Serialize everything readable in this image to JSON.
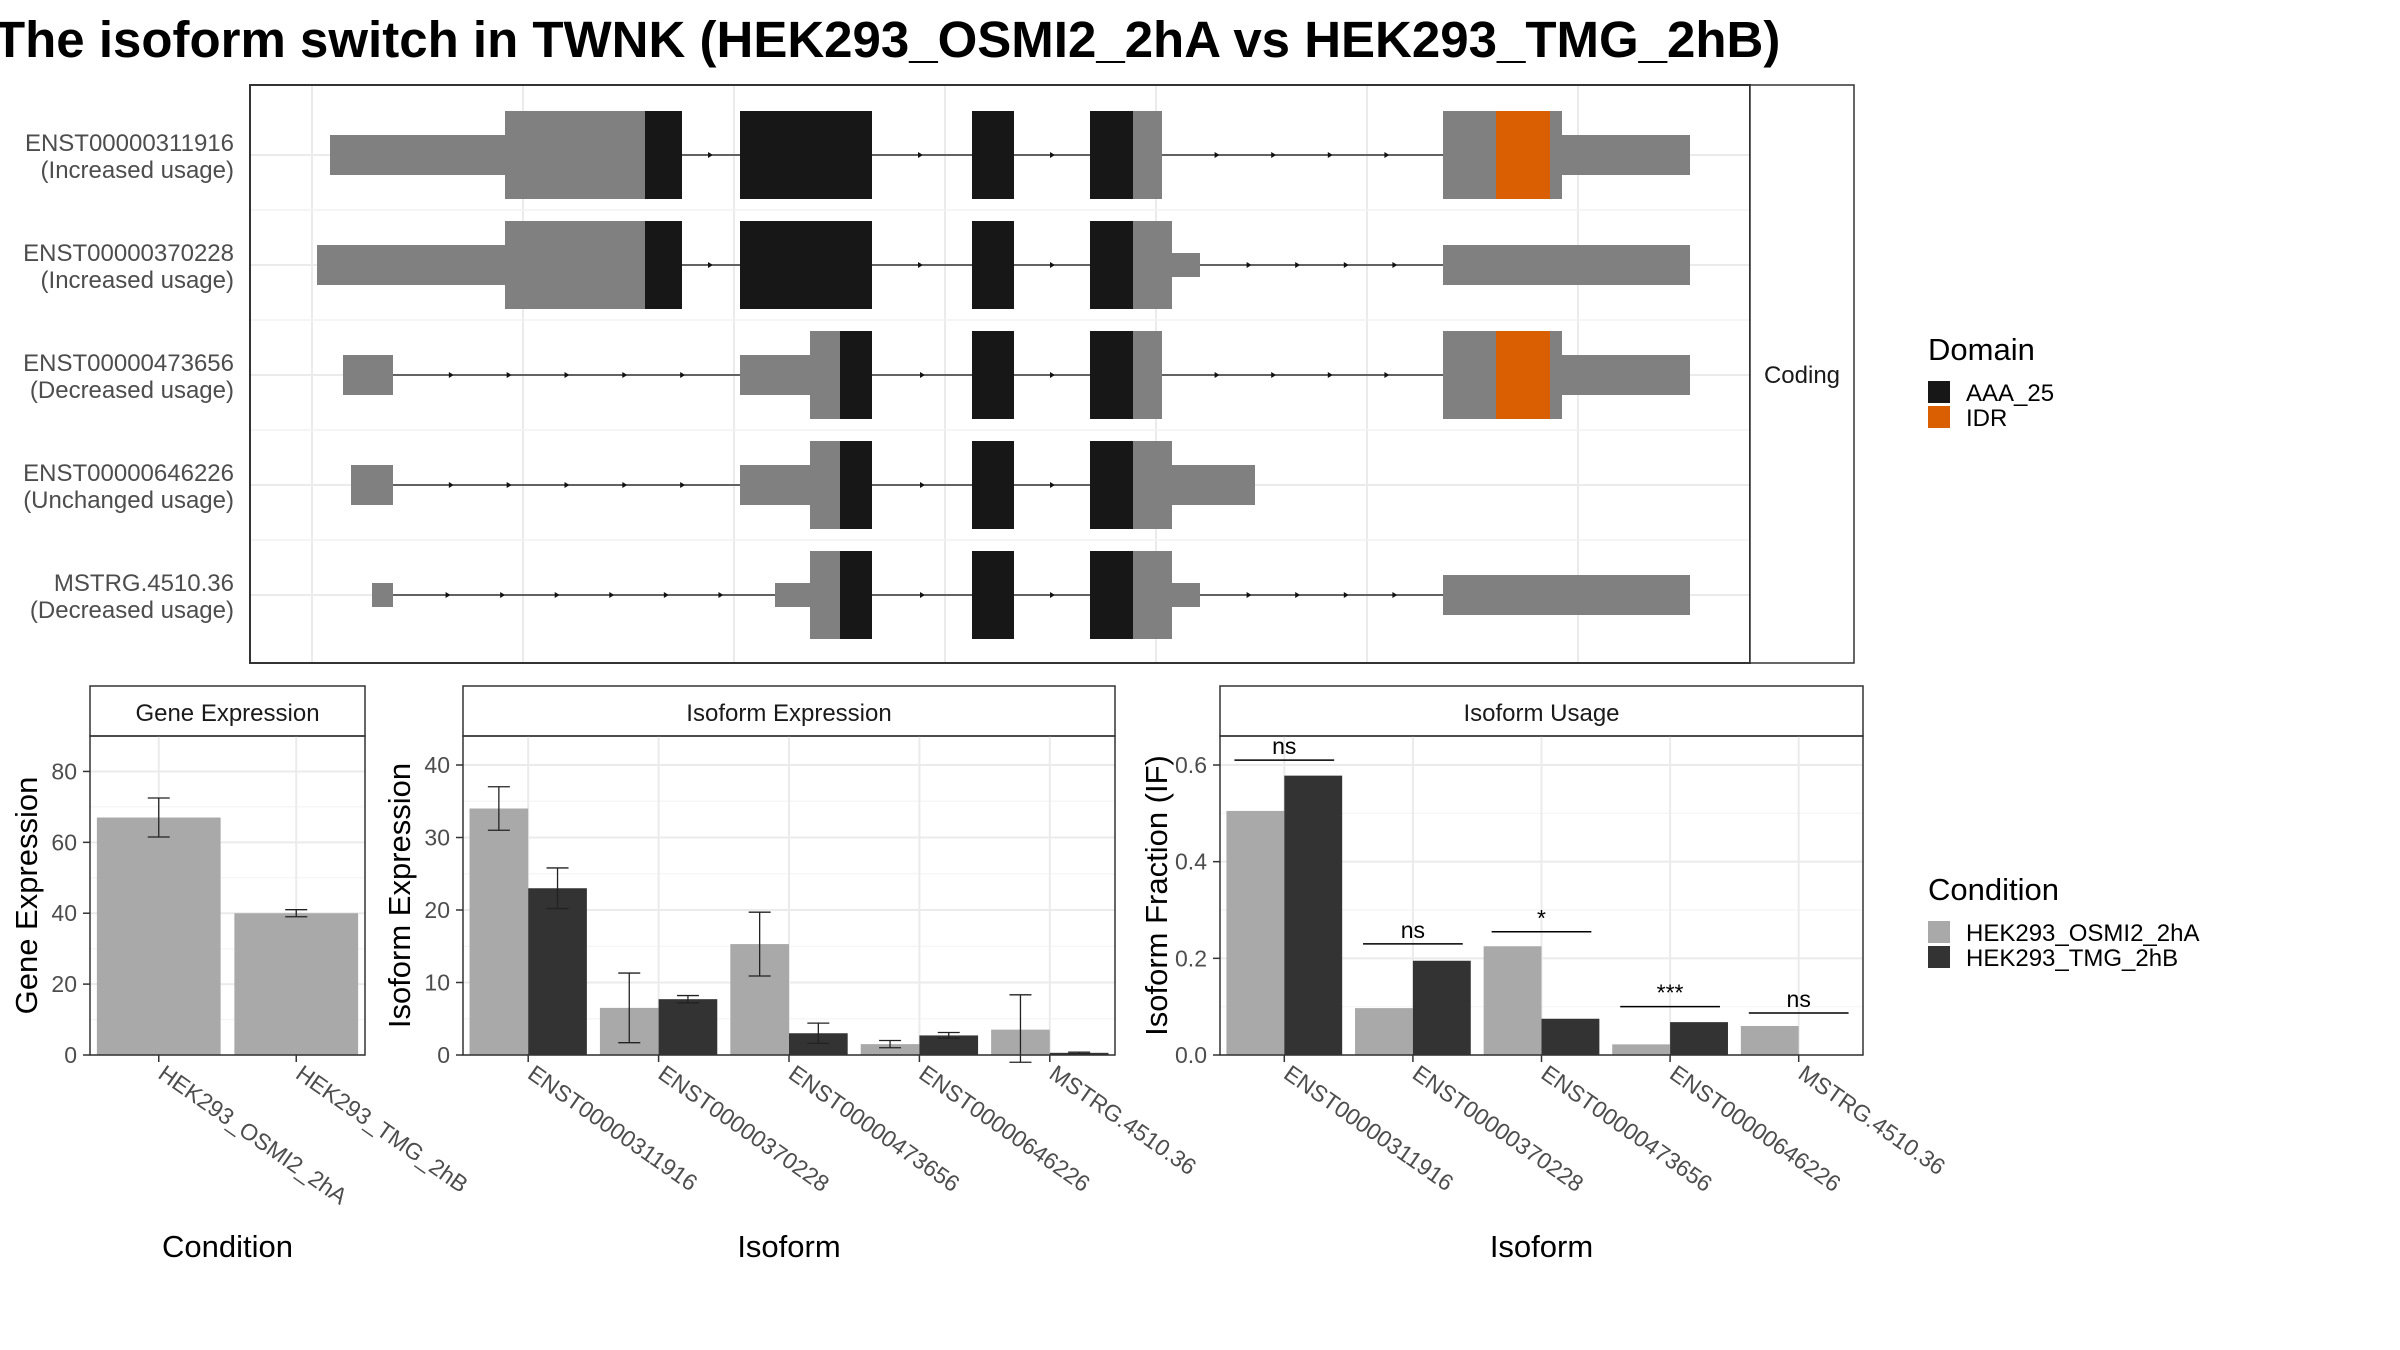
{
  "title": "The isoform switch in TWNK (HEK293_OSMI2_2hA vs HEK293_TMG_2hB)",
  "structure_strip": "Coding",
  "isoforms": [
    {
      "id": "ENST00000311916",
      "status": "(Increased usage)"
    },
    {
      "id": "ENST00000370228",
      "status": "(Increased usage)"
    },
    {
      "id": "ENST00000473656",
      "status": "(Decreased usage)"
    },
    {
      "id": "ENST00000646226",
      "status": "(Unchanged usage)"
    },
    {
      "id": "MSTRG.4510.36",
      "status": "(Decreased usage)"
    }
  ],
  "legend_domain": {
    "title": "Domain",
    "items": [
      {
        "label": "AAA_25",
        "color": "#171717"
      },
      {
        "label": "IDR",
        "color": "#d95f02"
      }
    ]
  },
  "legend_condition": {
    "title": "Condition",
    "items": [
      {
        "label": "HEK293_OSMI2_2hA",
        "color": "#a9a9a9"
      },
      {
        "label": "HEK293_TMG_2hB",
        "color": "#333333"
      }
    ]
  },
  "colors": {
    "utr": "#808080",
    "domain": "#171717",
    "idr": "#d95f02",
    "condA": "#a9a9a9",
    "condB": "#333333"
  },
  "chart_data": [
    {
      "type": "bar",
      "strip": "Gene Expression",
      "xlabel": "Condition",
      "ylabel": "Gene Expression",
      "categories": [
        "HEK293_OSMI2_2hA",
        "HEK293_TMG_2hB"
      ],
      "values": [
        67.0,
        40.0
      ],
      "error_low": [
        61.5,
        39.0
      ],
      "error_high": [
        72.5,
        41.0
      ],
      "ylim": [
        0,
        90
      ],
      "yticks": [
        0,
        20,
        40,
        60,
        80
      ]
    },
    {
      "type": "bar",
      "strip": "Isoform Expression",
      "xlabel": "Isoform",
      "ylabel": "Isoform Expression",
      "categories": [
        "ENST00000311916",
        "ENST00000370228",
        "ENST00000473656",
        "ENST00000646226",
        "MSTRG.4510.36"
      ],
      "series": [
        {
          "name": "HEK293_OSMI2_2hA",
          "values": [
            34.0,
            6.5,
            15.3,
            1.5,
            3.5
          ],
          "error_low": [
            31.0,
            1.7,
            10.9,
            1.0,
            -1.3
          ],
          "error_high": [
            37.0,
            11.3,
            19.7,
            2.0,
            8.3
          ]
        },
        {
          "name": "HEK293_TMG_2hB",
          "values": [
            23.0,
            7.7,
            3.0,
            2.7,
            0.3
          ],
          "error_low": [
            20.2,
            7.2,
            1.6,
            2.3,
            0.2
          ],
          "error_high": [
            25.8,
            8.2,
            4.4,
            3.1,
            0.4
          ]
        }
      ],
      "ylim": [
        0,
        44
      ],
      "yticks": [
        0,
        10,
        20,
        30,
        40
      ]
    },
    {
      "type": "bar",
      "strip": "Isoform Usage",
      "xlabel": "Isoform",
      "ylabel": "Isoform Fraction (IF)",
      "categories": [
        "ENST00000311916",
        "ENST00000370228",
        "ENST00000473656",
        "ENST00000646226",
        "MSTRG.4510.36"
      ],
      "series": [
        {
          "name": "HEK293_OSMI2_2hA",
          "values": [
            0.505,
            0.097,
            0.225,
            0.022,
            0.06
          ]
        },
        {
          "name": "HEK293_TMG_2hB",
          "values": [
            0.578,
            0.195,
            0.075,
            0.068,
            0.0
          ]
        }
      ],
      "significance": [
        "ns",
        "ns",
        "*",
        "***",
        "ns"
      ],
      "sig_level": [
        0.61,
        0.23,
        0.255,
        0.1,
        0.087
      ],
      "ylim": [
        0,
        0.66
      ],
      "yticks": [
        "0.0",
        "0.2",
        "0.4",
        "0.6"
      ]
    }
  ]
}
